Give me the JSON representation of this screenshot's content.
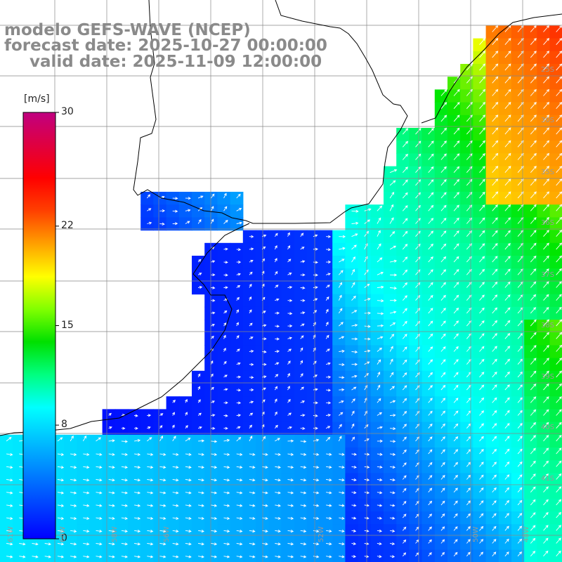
{
  "header": {
    "line1": "modelo GEFS-WAVE (NCEP)",
    "line2": "forecast date: 2025-10-27 00:00:00",
    "line3": "valid date: 2025-11-09 12:00:00"
  },
  "colorbar": {
    "unit": "[m/s]",
    "ticks": [
      {
        "value": 30,
        "label": "30"
      },
      {
        "value": 22,
        "label": "22"
      },
      {
        "value": 15,
        "label": "15"
      },
      {
        "value": 8,
        "label": "8"
      },
      {
        "value": 0,
        "label": "0"
      }
    ],
    "min": 0,
    "max": 30,
    "colors": [
      "#0000ff",
      "#0040ff",
      "#0080ff",
      "#00c0ff",
      "#00ffff",
      "#00ff80",
      "#00e000",
      "#80ff00",
      "#ffff00",
      "#ffa000",
      "#ff4000",
      "#ff0000",
      "#e00040",
      "#c00080"
    ]
  },
  "lat_labels": [
    "25S",
    "30S",
    "35S",
    "36S",
    "37S",
    "38S",
    "39S",
    "40S",
    "41S"
  ],
  "lon_labels": [
    "61W",
    "60W",
    "58W",
    "56W",
    "52W",
    "50W",
    "48W"
  ],
  "chart_data": {
    "type": "heatmap",
    "variable": "wind speed",
    "unit": "m/s",
    "colorscale_range": [
      0,
      30
    ],
    "legend_placement": "left"
  }
}
